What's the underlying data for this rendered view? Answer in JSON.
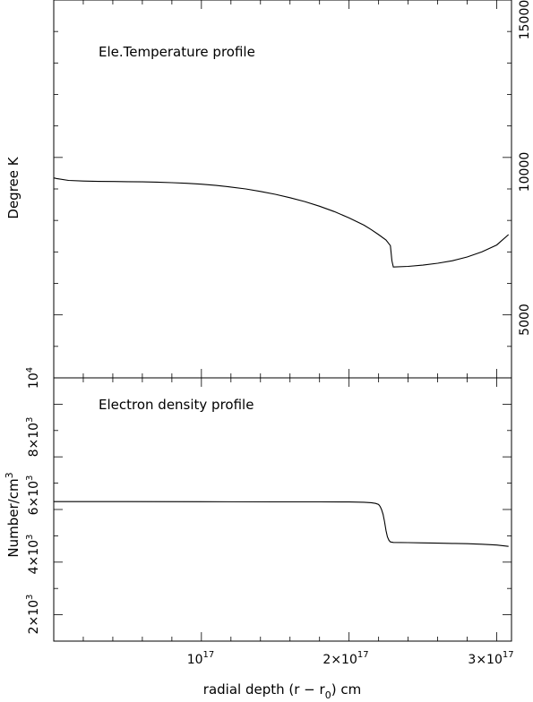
{
  "chart_data": [
    {
      "type": "line",
      "title": "Ele.Temperature profile",
      "ylabel": "Degree K",
      "ylim": [
        3000,
        15000
      ],
      "y_ticks": [
        {
          "value": 5000,
          "label": "5000"
        },
        {
          "value": 10000,
          "label": "10000"
        },
        {
          "value": 15000,
          "label": "15000"
        }
      ],
      "xlim": [
        0,
        3.1e+17
      ],
      "series": [
        {
          "x": [
            0,
            2000000000000000.0,
            1e+16,
            2e+16,
            3e+16,
            4e+16,
            5e+16,
            6e+16,
            7e+16,
            8e+16,
            9e+16,
            1e+17,
            1.1e+17,
            1.2e+17,
            1.3e+17,
            1.4e+17,
            1.5e+17,
            1.6e+17,
            1.7e+17,
            1.8e+17,
            1.9e+17,
            2e+17,
            2.1e+17,
            2.15e+17,
            2.2e+17,
            2.25e+17,
            2.28e+17,
            2.29e+17,
            2.3e+17,
            2.4e+17,
            2.5e+17,
            2.6e+17,
            2.7e+17,
            2.8e+17,
            2.9e+17,
            3e+17,
            3.08e+17
          ],
          "y": [
            9350,
            9330,
            9270,
            9250,
            9240,
            9235,
            9230,
            9225,
            9215,
            9200,
            9180,
            9150,
            9110,
            9060,
            9000,
            8920,
            8830,
            8720,
            8600,
            8450,
            8280,
            8080,
            7850,
            7710,
            7550,
            7380,
            7200,
            6720,
            6520,
            6540,
            6580,
            6640,
            6720,
            6840,
            7000,
            7220,
            7550
          ]
        }
      ]
    },
    {
      "type": "line",
      "title": "Electron density profile",
      "ylabel": "Number/cm",
      "ylabel_sup": "3",
      "ylim": [
        1000,
        11000
      ],
      "y_ticks": [
        {
          "value": 2000,
          "coef": "2×10",
          "exp": "3"
        },
        {
          "value": 4000,
          "coef": "4×10",
          "exp": "3"
        },
        {
          "value": 6000,
          "coef": "6×10",
          "exp": "3"
        },
        {
          "value": 8000,
          "coef": "8×10",
          "exp": "3"
        },
        {
          "value": 10000,
          "coef": "10",
          "exp": "4"
        }
      ],
      "xlim": [
        0,
        3.1e+17
      ],
      "series": [
        {
          "x": [
            0,
            2e+16,
            5e+16,
            1e+17,
            1.5e+17,
            1.8e+17,
            2e+17,
            2.1e+17,
            2.15e+17,
            2.18e+17,
            2.2e+17,
            2.21e+17,
            2.22e+17,
            2.23e+17,
            2.24e+17,
            2.25e+17,
            2.26e+17,
            2.27e+17,
            2.28e+17,
            2.3e+17,
            2.4e+17,
            2.5e+17,
            2.6e+17,
            2.7e+17,
            2.8e+17,
            2.9e+17,
            3e+17,
            3.08e+17
          ],
          "y": [
            6300,
            6300,
            6300,
            6295,
            6290,
            6290,
            6285,
            6275,
            6260,
            6230,
            6190,
            6120,
            6000,
            5820,
            5550,
            5200,
            4960,
            4830,
            4770,
            4750,
            4740,
            4730,
            4720,
            4710,
            4700,
            4680,
            4650,
            4600
          ]
        }
      ]
    }
  ],
  "x_axis": {
    "label_main": "radial depth (r − r",
    "label_sub": "0",
    "label_tail": ") cm",
    "ticks": [
      {
        "value": 1e+17,
        "coef": "10",
        "exp": "17"
      },
      {
        "value": 2e+17,
        "coef": "2×10",
        "exp": "17"
      },
      {
        "value": 3e+17,
        "coef": "3×10",
        "exp": "17"
      }
    ]
  }
}
